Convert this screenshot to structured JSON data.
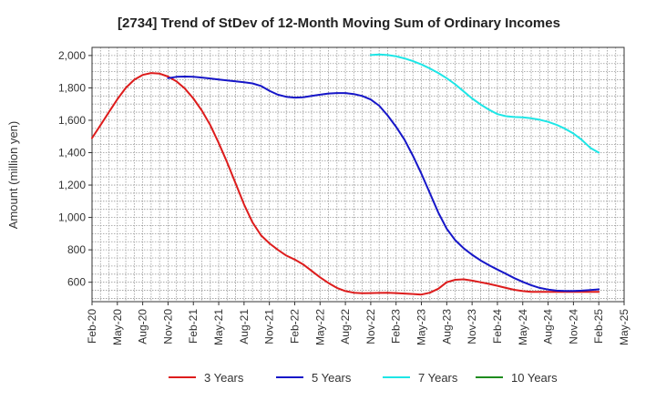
{
  "chart_data": {
    "type": "line",
    "title": "[2734]  Trend of StDev of 12-Month Moving Sum of Ordinary Incomes",
    "xlabel": "",
    "ylabel": "Amount (million yen)",
    "ylim": [
      480,
      2050
    ],
    "yticks": [
      600,
      800,
      1000,
      1200,
      1400,
      1600,
      1800,
      2000
    ],
    "ytick_labels": [
      "600",
      "800",
      "1,000",
      "1,200",
      "1,400",
      "1,600",
      "1,800",
      "2,000"
    ],
    "x_categories": [
      "Feb-20",
      "May-20",
      "Aug-20",
      "Nov-20",
      "Feb-21",
      "May-21",
      "Aug-21",
      "Nov-21",
      "Feb-22",
      "May-22",
      "Aug-22",
      "Nov-22",
      "Feb-23",
      "May-23",
      "Aug-23",
      "Nov-23",
      "Feb-24",
      "May-24",
      "Aug-24",
      "Nov-24",
      "Feb-25",
      "May-25"
    ],
    "grid": true,
    "legend_position": "bottom",
    "series": [
      {
        "name": "3 Years",
        "color": "#dd1c1c",
        "x": [
          "Feb-20",
          "Mar-20",
          "Apr-20",
          "May-20",
          "Jun-20",
          "Jul-20",
          "Aug-20",
          "Sep-20",
          "Oct-20",
          "Nov-20",
          "Dec-20",
          "Jan-21",
          "Feb-21",
          "Mar-21",
          "Apr-21",
          "May-21",
          "Jun-21",
          "Jul-21",
          "Aug-21",
          "Sep-21",
          "Oct-21",
          "Nov-21",
          "Dec-21",
          "Jan-22",
          "Feb-22",
          "Mar-22",
          "Apr-22",
          "May-22",
          "Jun-22",
          "Jul-22",
          "Aug-22",
          "Sep-22",
          "Oct-22",
          "Nov-22",
          "Dec-22",
          "Jan-23",
          "Feb-23",
          "Mar-23",
          "Apr-23",
          "May-23",
          "Jun-23",
          "Jul-23",
          "Aug-23",
          "Sep-23",
          "Oct-23",
          "Nov-23",
          "Dec-23",
          "Jan-24",
          "Feb-24",
          "Mar-24",
          "Apr-24",
          "May-24",
          "Jun-24",
          "Jul-24",
          "Aug-24",
          "Sep-24",
          "Oct-24",
          "Nov-24",
          "Dec-24",
          "Jan-25",
          "Feb-25"
        ],
        "values": [
          1490,
          1570,
          1650,
          1730,
          1800,
          1850,
          1880,
          1892,
          1888,
          1870,
          1840,
          1795,
          1735,
          1660,
          1570,
          1460,
          1340,
          1210,
          1080,
          970,
          890,
          840,
          800,
          765,
          740,
          710,
          670,
          630,
          595,
          565,
          545,
          535,
          532,
          533,
          534,
          535,
          533,
          530,
          527,
          524,
          535,
          560,
          600,
          615,
          618,
          610,
          600,
          590,
          578,
          565,
          553,
          545,
          540,
          540,
          540,
          540,
          540,
          540,
          540,
          540,
          540
        ]
      },
      {
        "name": "5 Years",
        "color": "#1616c8",
        "x": [
          "Nov-20",
          "Dec-20",
          "Jan-21",
          "Feb-21",
          "Mar-21",
          "Apr-21",
          "May-21",
          "Jun-21",
          "Jul-21",
          "Aug-21",
          "Sep-21",
          "Oct-21",
          "Nov-21",
          "Dec-21",
          "Jan-22",
          "Feb-22",
          "Mar-22",
          "Apr-22",
          "May-22",
          "Jun-22",
          "Jul-22",
          "Aug-22",
          "Sep-22",
          "Oct-22",
          "Nov-22",
          "Dec-22",
          "Jan-23",
          "Feb-23",
          "Mar-23",
          "Apr-23",
          "May-23",
          "Jun-23",
          "Jul-23",
          "Aug-23",
          "Sep-23",
          "Oct-23",
          "Nov-23",
          "Dec-23",
          "Jan-24",
          "Feb-24",
          "Mar-24",
          "Apr-24",
          "May-24",
          "Jun-24",
          "Jul-24",
          "Aug-24",
          "Sep-24",
          "Oct-24",
          "Nov-24",
          "Dec-24",
          "Jan-25",
          "Feb-25"
        ],
        "values": [
          1860,
          1868,
          1870,
          1868,
          1864,
          1858,
          1852,
          1846,
          1840,
          1835,
          1828,
          1812,
          1782,
          1758,
          1745,
          1740,
          1742,
          1750,
          1758,
          1765,
          1768,
          1768,
          1762,
          1750,
          1728,
          1690,
          1630,
          1560,
          1480,
          1380,
          1270,
          1150,
          1030,
          930,
          860,
          810,
          770,
          735,
          705,
          678,
          652,
          625,
          602,
          582,
          565,
          555,
          548,
          546,
          546,
          548,
          552,
          556
        ]
      },
      {
        "name": "7 Years",
        "color": "#1ee6e6",
        "x": [
          "Nov-22",
          "Dec-22",
          "Jan-23",
          "Feb-23",
          "Mar-23",
          "Apr-23",
          "May-23",
          "Jun-23",
          "Jul-23",
          "Aug-23",
          "Sep-23",
          "Oct-23",
          "Nov-23",
          "Dec-23",
          "Jan-24",
          "Feb-24",
          "Mar-24",
          "Apr-24",
          "May-24",
          "Jun-24",
          "Jul-24",
          "Aug-24",
          "Sep-24",
          "Oct-24",
          "Nov-24",
          "Dec-24",
          "Jan-25",
          "Feb-25"
        ],
        "values": [
          2003,
          2006,
          2003,
          1995,
          1982,
          1965,
          1945,
          1920,
          1892,
          1860,
          1822,
          1778,
          1735,
          1698,
          1665,
          1638,
          1625,
          1620,
          1618,
          1612,
          1603,
          1590,
          1572,
          1548,
          1518,
          1478,
          1430,
          1400
        ]
      },
      {
        "name": "10 Years",
        "color": "#1e8c1e",
        "x": [],
        "values": []
      }
    ]
  }
}
